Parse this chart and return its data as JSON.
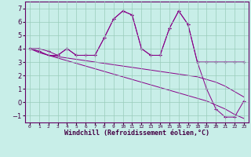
{
  "xlabel": "Windchill (Refroidissement éolien,°C)",
  "x_values": [
    0,
    1,
    2,
    3,
    4,
    5,
    6,
    7,
    8,
    9,
    10,
    11,
    12,
    13,
    14,
    15,
    16,
    17,
    18,
    19,
    20,
    21,
    22,
    23
  ],
  "line1_y": [
    4.0,
    4.0,
    3.8,
    3.5,
    4.0,
    3.5,
    3.5,
    3.5,
    4.8,
    6.2,
    6.8,
    6.5,
    4.0,
    3.5,
    3.5,
    5.5,
    6.8,
    5.8,
    3.0,
    3.0,
    3.0,
    3.0,
    3.0,
    3.0
  ],
  "line2_y": [
    4.0,
    3.8,
    3.5,
    3.5,
    4.0,
    3.5,
    3.5,
    3.5,
    4.8,
    6.2,
    6.8,
    6.5,
    4.0,
    3.5,
    3.5,
    5.5,
    6.8,
    5.8,
    3.0,
    1.0,
    -0.5,
    -1.1,
    -1.1,
    0.1
  ],
  "line3_y": [
    4.0,
    3.7,
    3.5,
    3.4,
    3.3,
    3.2,
    3.1,
    3.0,
    2.9,
    2.8,
    2.7,
    2.6,
    2.5,
    2.4,
    2.3,
    2.2,
    2.1,
    2.0,
    1.9,
    1.7,
    1.5,
    1.2,
    0.8,
    0.4
  ],
  "line4_y": [
    4.0,
    3.8,
    3.5,
    3.3,
    3.1,
    2.9,
    2.7,
    2.5,
    2.3,
    2.1,
    1.9,
    1.7,
    1.5,
    1.3,
    1.1,
    0.9,
    0.7,
    0.5,
    0.3,
    0.1,
    -0.2,
    -0.5,
    -0.9,
    -1.2
  ],
  "color": "#880088",
  "bg_color": "#c8eee8",
  "grid_color": "#99ccbb",
  "ylim": [
    -1.5,
    7.5
  ],
  "xlim": [
    -0.5,
    23.5
  ],
  "yticks": [
    -1,
    0,
    1,
    2,
    3,
    4,
    5,
    6,
    7
  ]
}
